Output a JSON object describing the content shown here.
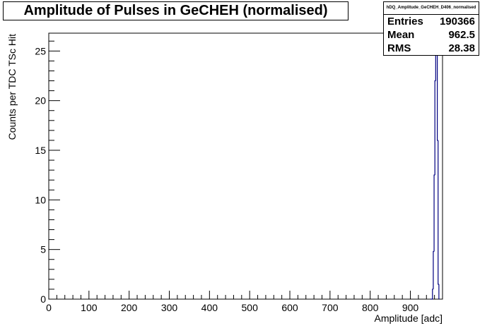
{
  "chart_data": {
    "type": "histogram",
    "title": "Amplitude of Pulses in GeCHEH (normalised)",
    "xlabel": "Amplitude [adc]",
    "ylabel": "Counts per TDC TSc Hit",
    "xlim": [
      0,
      980
    ],
    "ylim": [
      0,
      26.8
    ],
    "x_ticks": [
      0,
      100,
      200,
      300,
      400,
      500,
      600,
      700,
      800,
      900
    ],
    "y_ticks": [
      0,
      5,
      10,
      15,
      20,
      25
    ],
    "bins": [
      {
        "x": 950,
        "y": 0.0
      },
      {
        "x": 955,
        "y": 1.0
      },
      {
        "x": 957,
        "y": 4.8
      },
      {
        "x": 959,
        "y": 12.5
      },
      {
        "x": 961,
        "y": 22.0
      },
      {
        "x": 963,
        "y": 26.3
      },
      {
        "x": 965,
        "y": 26.8
      },
      {
        "x": 967,
        "y": 16.0
      },
      {
        "x": 969,
        "y": 1.5
      },
      {
        "x": 971,
        "y": 0.0
      }
    ],
    "line_color": "#000080",
    "grid": false,
    "stats": {
      "name": "hDQ_Amplitude_GeCHEH_D406_normalised",
      "rows": [
        {
          "label": "Entries",
          "value": "190366"
        },
        {
          "label": "Mean",
          "value": "962.5"
        },
        {
          "label": "RMS",
          "value": "28.38"
        }
      ]
    }
  }
}
